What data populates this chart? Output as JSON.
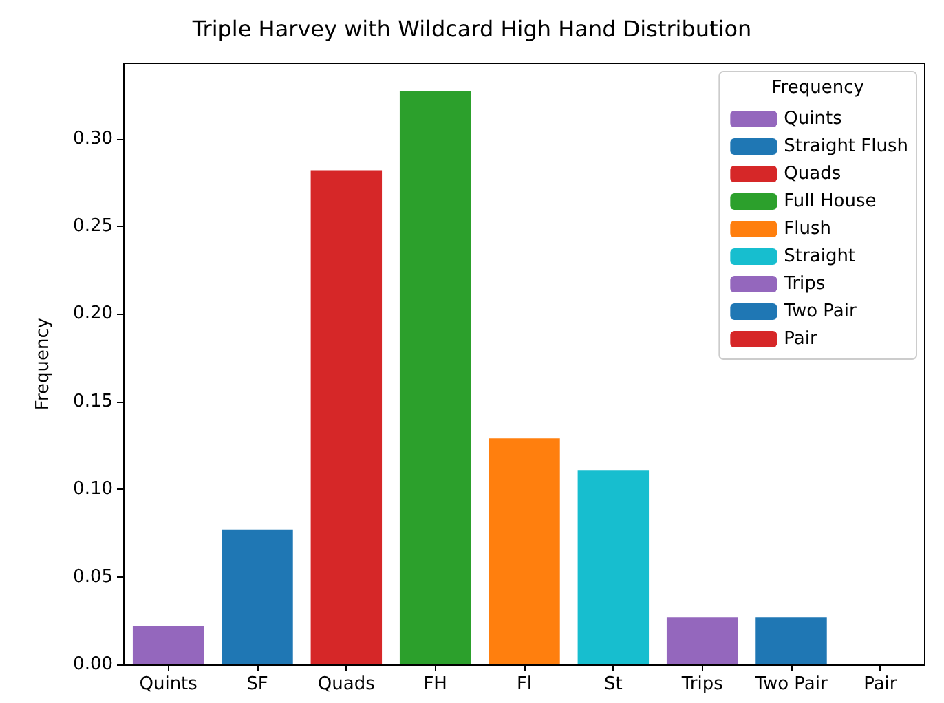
{
  "chart_data": {
    "type": "bar",
    "title": "Triple Harvey with Wildcard High Hand Distribution",
    "ylabel": "Frequency",
    "legend_title": "Frequency",
    "categories": [
      "Quints",
      "SF",
      "Quads",
      "FH",
      "Fl",
      "St",
      "Trips",
      "Two Pair",
      "Pair"
    ],
    "series": [
      {
        "name": "Quints",
        "color": "#9467bd",
        "values": [
          0.022,
          null,
          null,
          null,
          null,
          null,
          null,
          null,
          null
        ]
      },
      {
        "name": "Straight Flush",
        "color": "#1f77b4",
        "values": [
          null,
          0.077,
          null,
          null,
          null,
          null,
          null,
          null,
          null
        ]
      },
      {
        "name": "Quads",
        "color": "#d62728",
        "values": [
          null,
          null,
          0.282,
          null,
          null,
          null,
          null,
          null,
          null
        ]
      },
      {
        "name": "Full House",
        "color": "#2ca02c",
        "values": [
          null,
          null,
          null,
          0.327,
          null,
          null,
          null,
          null,
          null
        ]
      },
      {
        "name": "Flush",
        "color": "#ff7f0e",
        "values": [
          null,
          null,
          null,
          null,
          0.129,
          null,
          null,
          null,
          null
        ]
      },
      {
        "name": "Straight",
        "color": "#17becf",
        "values": [
          null,
          null,
          null,
          null,
          null,
          0.111,
          null,
          null,
          null
        ]
      },
      {
        "name": "Trips",
        "color": "#9467bd",
        "values": [
          null,
          null,
          null,
          null,
          null,
          null,
          0.027,
          null,
          null
        ]
      },
      {
        "name": "Two Pair",
        "color": "#1f77b4",
        "values": [
          null,
          null,
          null,
          null,
          null,
          null,
          null,
          0.027,
          null
        ]
      },
      {
        "name": "Pair",
        "color": "#d62728",
        "values": [
          null,
          null,
          null,
          null,
          null,
          null,
          null,
          null,
          0
        ]
      }
    ],
    "ylim": [
      0,
      0.343
    ],
    "yticks": [
      {
        "value": 0,
        "label": "0.00"
      },
      {
        "value": 0.05,
        "label": "0.05"
      },
      {
        "value": 0.1,
        "label": "0.10"
      },
      {
        "value": 0.15,
        "label": "0.15"
      },
      {
        "value": 0.2,
        "label": "0.20"
      },
      {
        "value": 0.25,
        "label": "0.25"
      },
      {
        "value": 0.3,
        "label": "0.30"
      }
    ],
    "grid": false,
    "legend": "top right"
  }
}
